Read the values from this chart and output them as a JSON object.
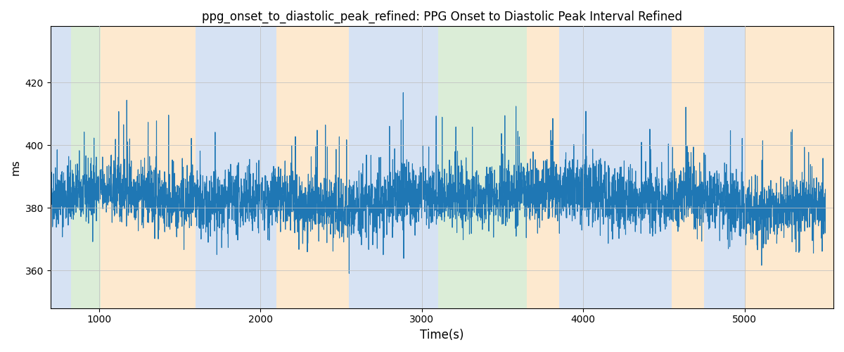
{
  "title": "ppg_onset_to_diastolic_peak_refined: PPG Onset to Diastolic Peak Interval Refined",
  "xlabel": "Time(s)",
  "ylabel": "ms",
  "xlim": [
    700,
    5550
  ],
  "ylim": [
    348,
    438
  ],
  "yticks": [
    360,
    380,
    400,
    420
  ],
  "xticks": [
    1000,
    2000,
    3000,
    4000,
    5000
  ],
  "line_color": "#1f77b4",
  "line_width": 0.8,
  "background_color": "#ffffff",
  "grid_color": "#c0c0c0",
  "bands": [
    {
      "xmin": 700,
      "xmax": 830,
      "color": "#aec6e8",
      "alpha": 0.5
    },
    {
      "xmin": 830,
      "xmax": 1010,
      "color": "#b8ddb0",
      "alpha": 0.5
    },
    {
      "xmin": 1010,
      "xmax": 1600,
      "color": "#fdd5a0",
      "alpha": 0.5
    },
    {
      "xmin": 1600,
      "xmax": 1870,
      "color": "#aec6e8",
      "alpha": 0.5
    },
    {
      "xmin": 1870,
      "xmax": 2100,
      "color": "#aec6e8",
      "alpha": 0.5
    },
    {
      "xmin": 2100,
      "xmax": 2550,
      "color": "#fdd5a0",
      "alpha": 0.5
    },
    {
      "xmin": 2550,
      "xmax": 3050,
      "color": "#aec6e8",
      "alpha": 0.5
    },
    {
      "xmin": 3050,
      "xmax": 3100,
      "color": "#aec6e8",
      "alpha": 0.5
    },
    {
      "xmin": 3100,
      "xmax": 3650,
      "color": "#b8ddb0",
      "alpha": 0.5
    },
    {
      "xmin": 3650,
      "xmax": 3850,
      "color": "#fdd5a0",
      "alpha": 0.5
    },
    {
      "xmin": 3850,
      "xmax": 4550,
      "color": "#aec6e8",
      "alpha": 0.5
    },
    {
      "xmin": 4550,
      "xmax": 4750,
      "color": "#fdd5a0",
      "alpha": 0.5
    },
    {
      "xmin": 4750,
      "xmax": 5000,
      "color": "#aec6e8",
      "alpha": 0.5
    },
    {
      "xmin": 5000,
      "xmax": 5550,
      "color": "#fdd5a0",
      "alpha": 0.5
    }
  ],
  "seed": 42,
  "n_points": 4800,
  "t_start": 700,
  "t_end": 5500,
  "base_value": 383,
  "noise_std": 5,
  "spike_prob": 0.018,
  "spike_magnitude": 28,
  "down_spike_prob": 0.006,
  "down_spike_magnitude": 18
}
